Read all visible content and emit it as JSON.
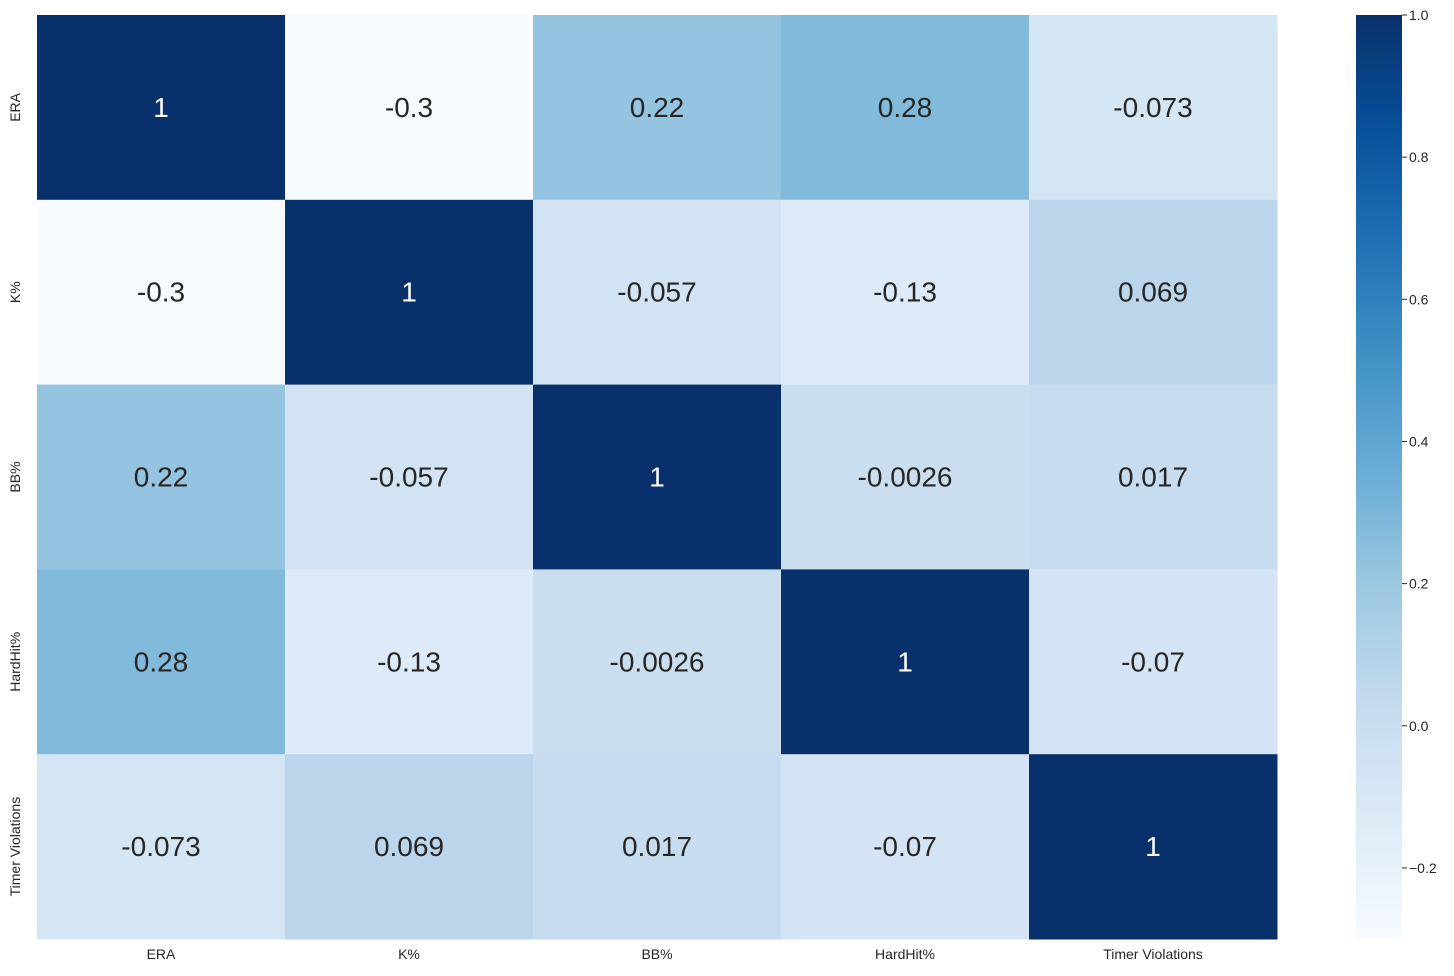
{
  "chart_data": {
    "type": "heatmap",
    "title": "",
    "xlabel": "",
    "ylabel": "",
    "x_categories": [
      "ERA",
      "K%",
      "BB%",
      "HardHit%",
      "Timer Violations"
    ],
    "y_categories": [
      "ERA",
      "K%",
      "BB%",
      "HardHit%",
      "Timer Violations"
    ],
    "values": [
      [
        1,
        -0.3,
        0.22,
        0.28,
        -0.073
      ],
      [
        -0.3,
        1,
        -0.057,
        -0.13,
        0.069
      ],
      [
        0.22,
        -0.057,
        1,
        -0.0026,
        0.017
      ],
      [
        0.28,
        -0.13,
        -0.0026,
        1,
        -0.07
      ],
      [
        -0.073,
        0.069,
        0.017,
        -0.07,
        1
      ]
    ],
    "annotations": [
      [
        "1",
        "-0.3",
        "0.22",
        "0.28",
        "-0.073"
      ],
      [
        "-0.3",
        "1",
        "-0.057",
        "-0.13",
        "0.069"
      ],
      [
        "0.22",
        "-0.057",
        "1",
        "-0.0026",
        "0.017"
      ],
      [
        "0.28",
        "-0.13",
        "-0.0026",
        "1",
        "-0.07"
      ],
      [
        "-0.073",
        "0.069",
        "0.017",
        "-0.07",
        "1"
      ]
    ],
    "colormap": "Blues",
    "colormap_stops": [
      "#f7fbff",
      "#deebf7",
      "#c6dbef",
      "#9ecae1",
      "#6baed6",
      "#4292c6",
      "#2171b5",
      "#08519c",
      "#08306b"
    ],
    "vmin": -0.3,
    "vmax": 1.0,
    "colorbar": {
      "ticks": [
        -0.2,
        0.0,
        0.2,
        0.4,
        0.6,
        0.8,
        1.0
      ],
      "tick_labels": [
        "−0.2",
        "0.0",
        "0.2",
        "0.4",
        "0.6",
        "0.8",
        "1.0"
      ]
    },
    "annotation_colors": {
      "dark": "#262626",
      "light": "#ffffff"
    },
    "grid": false
  }
}
